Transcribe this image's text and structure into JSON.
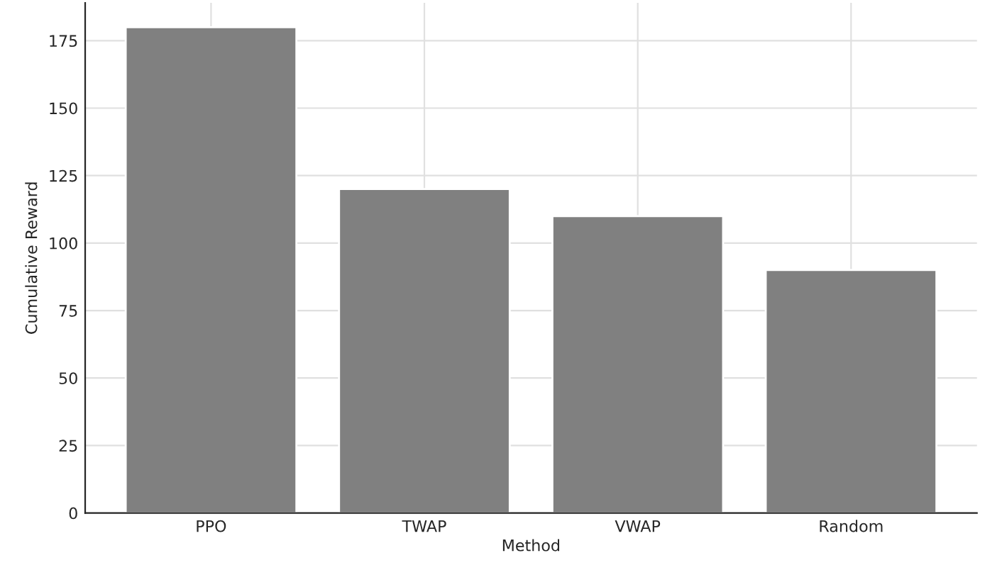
{
  "chart_data": {
    "type": "bar",
    "xlabel": "Method",
    "ylabel": "Cumulative Reward",
    "categories": [
      "PPO",
      "TWAP",
      "VWAP",
      "Random"
    ],
    "values": [
      180,
      120,
      110,
      90
    ],
    "color": "#808080",
    "ylim": [
      0,
      189
    ],
    "yticks": [
      0,
      25,
      50,
      75,
      100,
      125,
      150,
      175
    ],
    "grid": true
  }
}
